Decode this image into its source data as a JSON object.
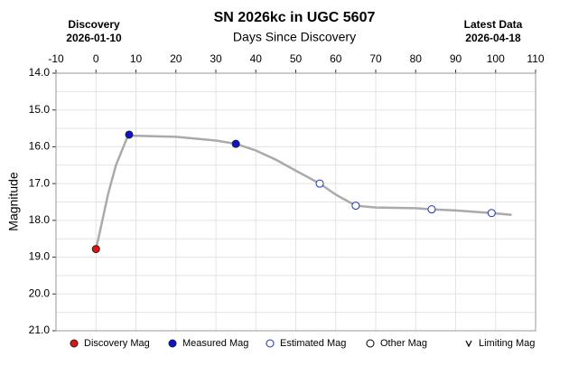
{
  "chart_data": {
    "type": "scatter",
    "title": "SN 2026kc in UGC 5607",
    "x_label": "Days Since Discovery",
    "y_label": "Magnitude",
    "left_note": {
      "heading": "Discovery",
      "date": "2026-01-10"
    },
    "right_note": {
      "heading": "Latest Data",
      "date": "2026-04-18"
    },
    "xlim": [
      -10,
      110
    ],
    "xticks": [
      -10,
      0,
      10,
      20,
      30,
      40,
      50,
      60,
      70,
      80,
      90,
      100,
      110
    ],
    "ylim": [
      21,
      14
    ],
    "yticks": [
      {
        "value": 14,
        "label": "14.0"
      },
      {
        "value": 15,
        "label": "15.0"
      },
      {
        "value": 16,
        "label": "16.0"
      },
      {
        "value": 17,
        "label": "17.0"
      },
      {
        "value": 18,
        "label": "18.0"
      },
      {
        "value": 19,
        "label": "19.0"
      },
      {
        "value": 20,
        "label": "20.0"
      },
      {
        "value": 21,
        "label": "21.0"
      }
    ],
    "minor_yticks": [
      14.5,
      15.5,
      16.5,
      17.5,
      18.5,
      19.5,
      20.5
    ],
    "grid": true,
    "curve": {
      "color": "#aaaaaa",
      "x": [
        0,
        1,
        3,
        5,
        8,
        10,
        20,
        30,
        35,
        40,
        45,
        50,
        56,
        60,
        65,
        70,
        80,
        84,
        90,
        99,
        104
      ],
      "values": [
        18.78,
        18.3,
        17.3,
        16.5,
        15.7,
        15.7,
        15.73,
        15.83,
        15.92,
        16.1,
        16.35,
        16.65,
        17.0,
        17.3,
        17.6,
        17.65,
        17.67,
        17.7,
        17.73,
        17.8,
        17.85
      ]
    },
    "series": [
      {
        "name": "Discovery Mag",
        "color": "#e8120c",
        "marker": "filled",
        "x": [
          0
        ],
        "values": [
          18.78
        ]
      },
      {
        "name": "Measured Mag",
        "color": "#0a14d8",
        "marker": "filled",
        "x": [
          8.3,
          35
        ],
        "values": [
          15.67,
          15.92
        ]
      },
      {
        "name": "Estimated Mag",
        "color": "#1a2ee0",
        "marker": "open",
        "x": [
          56,
          65,
          84,
          99
        ],
        "values": [
          17.0,
          17.6,
          17.7,
          17.8
        ]
      },
      {
        "name": "Other Mag",
        "color": "#000000",
        "marker": "open",
        "x": [],
        "values": []
      },
      {
        "name": "Limiting Mag",
        "color": "#000000",
        "marker": "v",
        "x": [],
        "values": []
      }
    ]
  }
}
